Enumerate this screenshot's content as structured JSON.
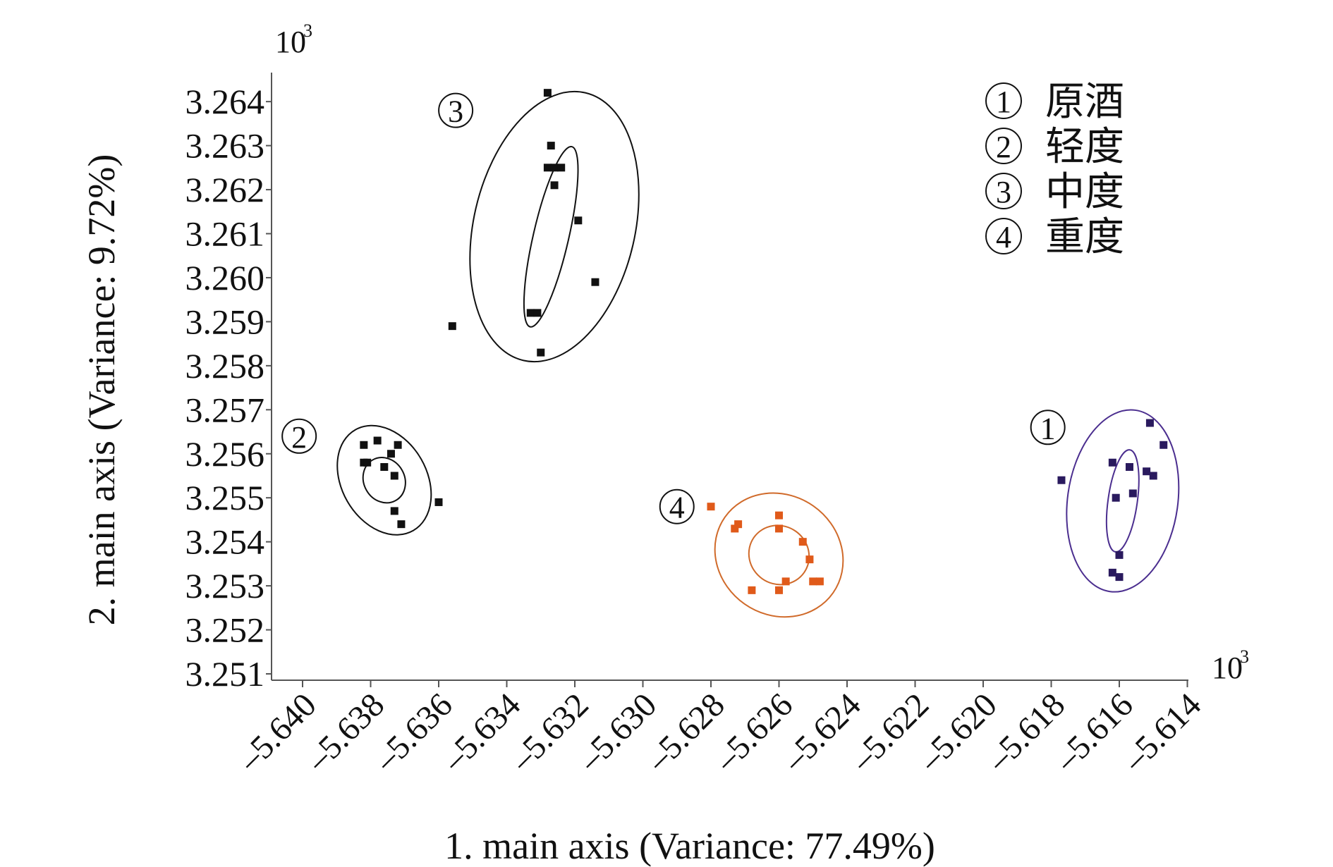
{
  "chart_data": {
    "type": "scatter",
    "title": "",
    "xlabel": "1. main axis (Variance: 77.49%)",
    "ylabel": "2. main axis (Variance: 9.72%)",
    "x_multiplier": "10³",
    "y_multiplier": "10³",
    "xlim": [
      -5.6405,
      -5.6137
    ],
    "ylim": [
      3.2507,
      3.2651
    ],
    "x_ticks": [
      -5.64,
      -5.638,
      -5.636,
      -5.634,
      -5.632,
      -5.63,
      -5.628,
      -5.626,
      -5.624,
      -5.622,
      -5.62,
      -5.618,
      -5.616,
      -5.614
    ],
    "x_tick_labels": [
      "–5.640",
      "–5.638",
      "–5.636",
      "–5.634",
      "–5.632",
      "–5.630",
      "–5.628",
      "–5.626",
      "–5.624",
      "–5.622",
      "–5.620",
      "–5.618",
      "–5.616",
      "–5.614"
    ],
    "y_ticks": [
      3.251,
      3.252,
      3.253,
      3.254,
      3.255,
      3.256,
      3.257,
      3.258,
      3.259,
      3.26,
      3.261,
      3.262,
      3.263,
      3.264
    ],
    "y_tick_labels": [
      "3.251",
      "3.252",
      "3.253",
      "3.254",
      "3.255",
      "3.256",
      "3.257",
      "3.258",
      "3.259",
      "3.260",
      "3.261",
      "3.262",
      "3.263",
      "3.264"
    ],
    "grid": false,
    "legend_position": "top-right",
    "legend": [
      {
        "marker": "①",
        "label": "原酒"
      },
      {
        "marker": "②",
        "label": "轻度"
      },
      {
        "marker": "③",
        "label": "中度"
      },
      {
        "marker": "④",
        "label": "重度"
      }
    ],
    "series": [
      {
        "marker": "①",
        "color": "#2a1a5e",
        "ellipse_color": "#4b2e8f",
        "points": [
          [
            -5.6177,
            3.2554
          ],
          [
            -5.6162,
            3.2558
          ],
          [
            -5.6157,
            3.2557
          ],
          [
            -5.6152,
            3.2556
          ],
          [
            -5.6161,
            3.255
          ],
          [
            -5.6156,
            3.2551
          ],
          [
            -5.615,
            3.2555
          ],
          [
            -5.6147,
            3.2562
          ],
          [
            -5.6151,
            3.2567
          ],
          [
            -5.616,
            3.2537
          ],
          [
            -5.6162,
            3.2533
          ],
          [
            -5.616,
            3.2532
          ]
        ],
        "ellipses": [
          {
            "cx": -5.6159,
            "cy": 3.25493,
            "rx": 0.00162,
            "ry": 0.00208,
            "angle_deg": 8
          },
          {
            "cx": -5.6159,
            "cy": 3.25493,
            "rx": 0.00043,
            "ry": 0.00117,
            "angle_deg": 8
          }
        ]
      },
      {
        "marker": "②",
        "color": "#111111",
        "ellipse_color": "#111111",
        "points": [
          [
            -5.6382,
            3.2562
          ],
          [
            -5.6378,
            3.2563
          ],
          [
            -5.6374,
            3.256
          ],
          [
            -5.6372,
            3.2562
          ],
          [
            -5.6382,
            3.2558
          ],
          [
            -5.6381,
            3.2558
          ],
          [
            -5.6376,
            3.2557
          ],
          [
            -5.6373,
            3.2555
          ],
          [
            -5.6373,
            3.2547
          ],
          [
            -5.6371,
            3.2544
          ],
          [
            -5.636,
            3.2549
          ]
        ],
        "ellipses": [
          {
            "cx": -5.6376,
            "cy": 3.2554,
            "rx": 0.00125,
            "ry": 0.00132,
            "angle_deg": -30
          },
          {
            "cx": -5.6376,
            "cy": 3.2554,
            "rx": 0.0006,
            "ry": 0.00053,
            "angle_deg": -30
          }
        ]
      },
      {
        "marker": "③",
        "color": "#111111",
        "ellipse_color": "#111111",
        "points": [
          [
            -5.6328,
            3.2642
          ],
          [
            -5.6327,
            3.263
          ],
          [
            -5.6328,
            3.2625
          ],
          [
            -5.6326,
            3.2625
          ],
          [
            -5.6324,
            3.2625
          ],
          [
            -5.6326,
            3.2621
          ],
          [
            -5.6319,
            3.2613
          ],
          [
            -5.6314,
            3.2599
          ],
          [
            -5.6356,
            3.2589
          ],
          [
            -5.6333,
            3.2592
          ],
          [
            -5.6331,
            3.2592
          ],
          [
            -5.633,
            3.2583
          ]
        ],
        "ellipses": [
          {
            "cx": -5.6326,
            "cy": 3.26116,
            "rx": 0.00237,
            "ry": 0.00312,
            "angle_deg": 13
          },
          {
            "cx": -5.6327,
            "cy": 3.26093,
            "rx": 0.00052,
            "ry": 0.0021,
            "angle_deg": 13
          }
        ]
      },
      {
        "marker": "④",
        "color": "#e05a1a",
        "ellipse_color": "#d06a2a",
        "points": [
          [
            -5.628,
            3.2548
          ],
          [
            -5.6272,
            3.2544
          ],
          [
            -5.6273,
            3.2543
          ],
          [
            -5.626,
            3.2546
          ],
          [
            -5.626,
            3.2543
          ],
          [
            -5.6253,
            3.254
          ],
          [
            -5.6251,
            3.2536
          ],
          [
            -5.625,
            3.2531
          ],
          [
            -5.6248,
            3.2531
          ],
          [
            -5.6258,
            3.2531
          ],
          [
            -5.626,
            3.2529
          ],
          [
            -5.6268,
            3.2529
          ]
        ],
        "ellipses": [
          {
            "cx": -5.626,
            "cy": 3.2537,
            "rx": 0.00194,
            "ry": 0.00136,
            "angle_deg": 35
          },
          {
            "cx": -5.626,
            "cy": 3.2537,
            "rx": 0.0009,
            "ry": 0.00066,
            "angle_deg": 35
          }
        ]
      }
    ],
    "cluster_labels": [
      {
        "marker": "①",
        "x": -5.6181,
        "y": 3.2566
      },
      {
        "marker": "②",
        "x": -5.6401,
        "y": 3.2564
      },
      {
        "marker": "③",
        "x": -5.6355,
        "y": 3.2638
      },
      {
        "marker": "④",
        "x": -5.629,
        "y": 3.2548
      }
    ]
  }
}
